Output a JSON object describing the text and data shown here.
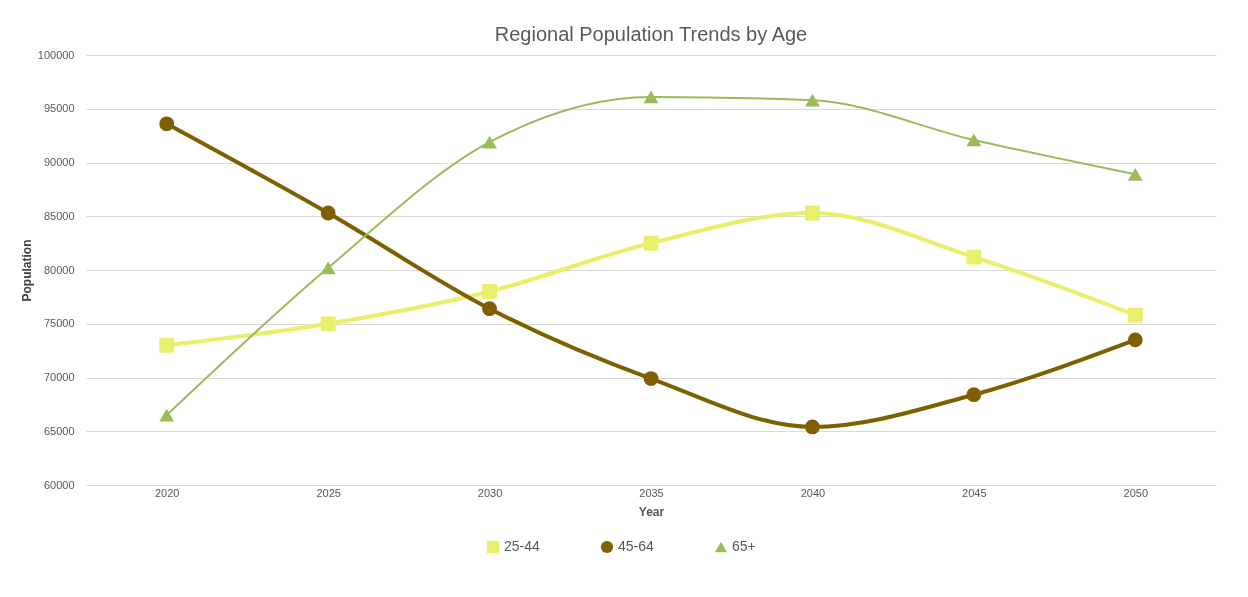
{
  "chart_data": {
    "type": "line",
    "title": "Regional Population Trends by Age",
    "xlabel": "Year",
    "ylabel": "Population",
    "categories": [
      "2020",
      "2025",
      "2030",
      "2035",
      "2040",
      "2045",
      "2050"
    ],
    "series": [
      {
        "name": "25-44",
        "color": "#e8ef6a",
        "marker": "square",
        "values": [
          73000,
          75000,
          78000,
          82500,
          85300,
          81200,
          75800
        ]
      },
      {
        "name": "45-64",
        "color": "#7f6000",
        "marker": "circle",
        "values": [
          93600,
          85300,
          76400,
          69900,
          65400,
          68400,
          73500
        ]
      },
      {
        "name": "65+",
        "color": "#9bbb59",
        "marker": "triangle",
        "values": [
          66500,
          80200,
          91900,
          96100,
          95800,
          92100,
          88900
        ]
      }
    ],
    "ylim": [
      60000,
      100000
    ],
    "yticks": [
      60000,
      65000,
      70000,
      75000,
      80000,
      85000,
      90000,
      95000,
      100000
    ],
    "grid": "y",
    "legend": "bottom",
    "line_style": "solid"
  }
}
